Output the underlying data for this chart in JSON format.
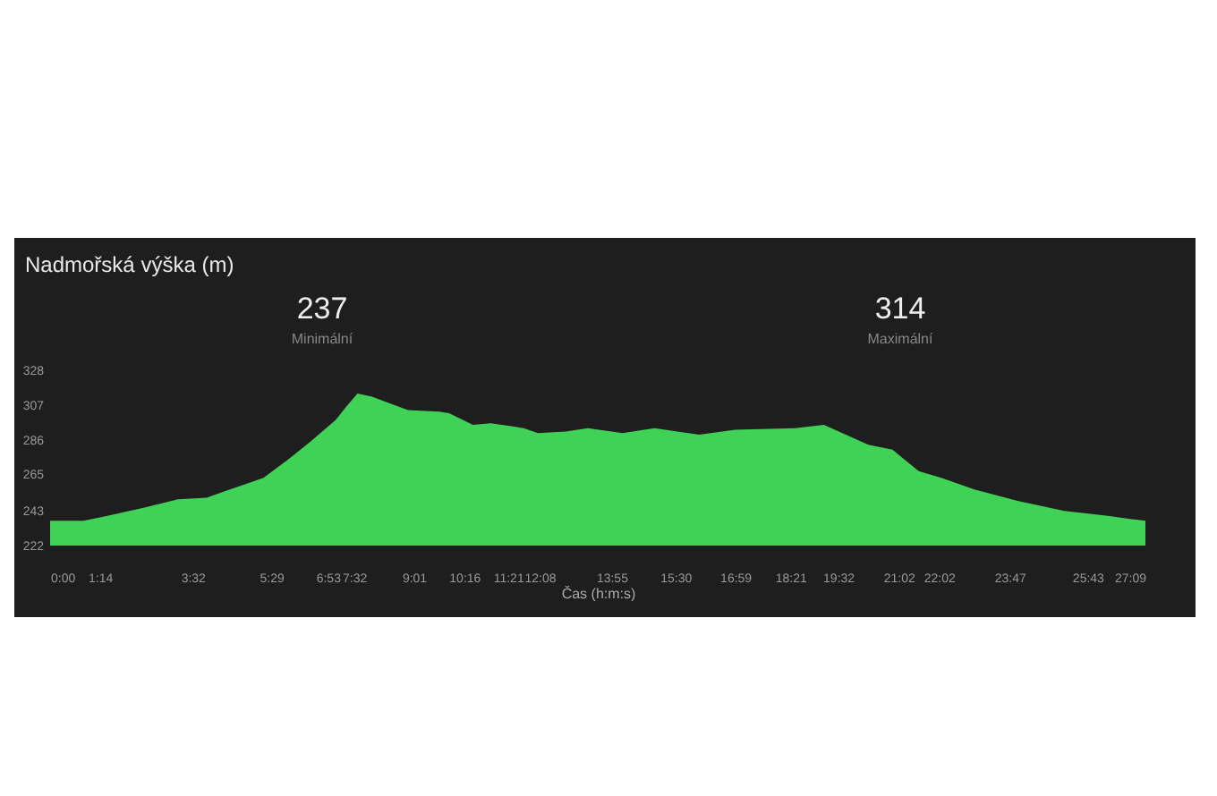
{
  "chart_data": {
    "type": "area",
    "title": "Nadmořská výška (m)",
    "xlabel": "Čas (h:m:s)",
    "annotations": [
      "237",
      "Minimální",
      "314",
      "Maximální"
    ],
    "x": [
      0,
      0.83,
      1.42,
      2.34,
      3.17,
      3.88,
      4.7,
      5.29,
      5.9,
      6.46,
      7.08,
      7.34,
      7.62,
      7.98,
      8.42,
      8.87,
      9.64,
      9.89,
      10.48,
      10.92,
      11.47,
      11.74,
      12.09,
      12.78,
      13.33,
      14.19,
      14.98,
      16.09,
      16.98,
      18.47,
      19.18,
      20.28,
      20.88,
      21.53,
      22.09,
      22.91,
      23.98,
      25.14,
      26.22,
      26.81,
      27.15
    ],
    "series": [
      {
        "color": "#40d257",
        "values": [
          237,
          237,
          240,
          245,
          250,
          251,
          258,
          263,
          274,
          285,
          298,
          306,
          314,
          312,
          308,
          304,
          303,
          302,
          295,
          296,
          294,
          293,
          290,
          291,
          293,
          290,
          293,
          289,
          292,
          293,
          295,
          283,
          280,
          267,
          263,
          256,
          249,
          243,
          240,
          238,
          237
        ]
      }
    ],
    "xlim": [
      0,
      27.15
    ],
    "xticks": [
      {
        "value": 0,
        "label": "0:00"
      },
      {
        "value": 1.233,
        "label": "1:14"
      },
      {
        "value": 3.533,
        "label": "3:32"
      },
      {
        "value": 5.483,
        "label": "5:29"
      },
      {
        "value": 6.883,
        "label": "6:53"
      },
      {
        "value": 7.533,
        "label": "7:32"
      },
      {
        "value": 9.017,
        "label": "9:01"
      },
      {
        "value": 10.267,
        "label": "10:16"
      },
      {
        "value": 11.35,
        "label": "11:21"
      },
      {
        "value": 12.133,
        "label": "12:08"
      },
      {
        "value": 13.917,
        "label": "13:55"
      },
      {
        "value": 15.5,
        "label": "15:30"
      },
      {
        "value": 16.983,
        "label": "16:59"
      },
      {
        "value": 18.35,
        "label": "18:21"
      },
      {
        "value": 19.533,
        "label": "19:32"
      },
      {
        "value": 21.033,
        "label": "21:02"
      },
      {
        "value": 22.033,
        "label": "22:02"
      },
      {
        "value": 23.783,
        "label": "23:47"
      },
      {
        "value": 25.717,
        "label": "25:43"
      },
      {
        "value": 27.15,
        "label": "27:09"
      }
    ],
    "ylim": [
      222,
      328
    ],
    "yticks": [
      222,
      243,
      265,
      286,
      307,
      328
    ],
    "grid": false,
    "marker": "none"
  }
}
